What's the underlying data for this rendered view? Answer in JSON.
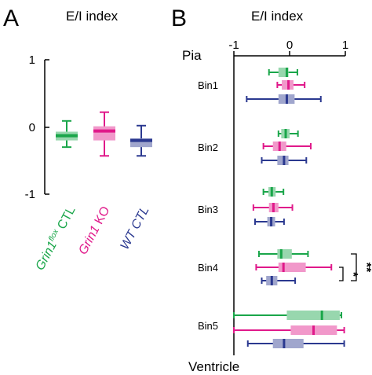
{
  "panel_a": {
    "letter": "A",
    "title": "E/I index",
    "y_tick_labels": [
      "1",
      "0",
      "-1"
    ],
    "category_labels": [
      {
        "main": "Grin1",
        "sup": "flox",
        "rest": " CTL"
      },
      {
        "main": "Grin1",
        "sup": "",
        "rest": " KO"
      },
      {
        "main": "WT CTL",
        "sup": "",
        "rest": ""
      }
    ]
  },
  "panel_b": {
    "letter": "B",
    "title": "E/I index",
    "top_label": "Pia",
    "bottom_label": "Ventricle",
    "x_tick_labels": [
      "-1",
      "0",
      "1"
    ],
    "bin_labels": [
      "Bin1",
      "Bin2",
      "Bin3",
      "Bin4",
      "Bin5"
    ],
    "significance": [
      "*",
      "**"
    ]
  },
  "colors": {
    "grin1flox_ctl": "#1aa64a",
    "grin1_ko": "#e0198a",
    "wt_ctl": "#2b3990"
  },
  "chart_data": [
    {
      "type": "box",
      "title": "E/I index",
      "ylim": [
        -1,
        1
      ],
      "y_ticks": [
        -1,
        0,
        1
      ],
      "grid": false,
      "series": [
        {
          "name": "Grin1flox CTL",
          "color_key": "grin1flox_ctl",
          "whisker_low": -0.3,
          "q1": -0.2,
          "median": -0.13,
          "q3": -0.07,
          "whisker_high": 0.09
        },
        {
          "name": "Grin1 KO",
          "color_key": "grin1_ko",
          "whisker_low": -0.43,
          "q1": -0.2,
          "median": -0.06,
          "q3": 0.01,
          "whisker_high": 0.22
        },
        {
          "name": "WT CTL",
          "color_key": "wt_ctl",
          "whisker_low": -0.43,
          "q1": -0.3,
          "median": -0.2,
          "q3": -0.17,
          "whisker_high": 0.02
        }
      ]
    },
    {
      "type": "box",
      "orientation": "horizontal",
      "title": "E/I index",
      "xlim": [
        -1,
        1
      ],
      "x_ticks": [
        -1,
        0,
        1
      ],
      "grid": false,
      "bins": [
        {
          "label": "Bin1",
          "boxes": [
            {
              "group": "Grin1flox CTL",
              "color_key": "grin1flox_ctl",
              "whisker_low": -0.37,
              "q1": -0.2,
              "median": -0.05,
              "q3": -0.02,
              "whisker_high": 0.14
            },
            {
              "group": "Grin1 KO",
              "color_key": "grin1_ko",
              "whisker_low": -0.22,
              "q1": -0.14,
              "median": -0.02,
              "q3": 0.07,
              "whisker_high": 0.27
            },
            {
              "group": "WT CTL",
              "color_key": "wt_ctl",
              "whisker_low": -0.77,
              "q1": -0.2,
              "median": -0.05,
              "q3": 0.09,
              "whisker_high": 0.56
            }
          ]
        },
        {
          "label": "Bin2",
          "boxes": [
            {
              "group": "Grin1flox CTL",
              "color_key": "grin1flox_ctl",
              "whisker_low": -0.2,
              "q1": -0.15,
              "median": -0.07,
              "q3": 0.0,
              "whisker_high": 0.15
            },
            {
              "group": "Grin1 KO",
              "color_key": "grin1_ko",
              "whisker_low": -0.47,
              "q1": -0.3,
              "median": -0.18,
              "q3": -0.06,
              "whisker_high": 0.38
            },
            {
              "group": "WT CTL",
              "color_key": "wt_ctl",
              "whisker_low": -0.5,
              "q1": -0.22,
              "median": -0.1,
              "q3": -0.02,
              "whisker_high": 0.3
            }
          ]
        },
        {
          "label": "Bin3",
          "boxes": [
            {
              "group": "Grin1flox CTL",
              "color_key": "grin1flox_ctl",
              "whisker_low": -0.47,
              "q1": -0.38,
              "median": -0.32,
              "q3": -0.25,
              "whisker_high": -0.11
            },
            {
              "group": "Grin1 KO",
              "color_key": "grin1_ko",
              "whisker_low": -0.65,
              "q1": -0.37,
              "median": -0.29,
              "q3": -0.2,
              "whisker_high": 0.05
            },
            {
              "group": "WT CTL",
              "color_key": "wt_ctl",
              "whisker_low": -0.62,
              "q1": -0.4,
              "median": -0.33,
              "q3": -0.26,
              "whisker_high": -0.1
            }
          ]
        },
        {
          "label": "Bin4",
          "boxes": [
            {
              "group": "Grin1flox CTL",
              "color_key": "grin1flox_ctl",
              "whisker_low": -0.55,
              "q1": -0.22,
              "median": -0.15,
              "q3": 0.04,
              "whisker_high": 0.33
            },
            {
              "group": "Grin1 KO",
              "color_key": "grin1_ko",
              "whisker_low": -0.6,
              "q1": -0.2,
              "median": -0.11,
              "q3": 0.29,
              "whisker_high": 0.75
            },
            {
              "group": "WT CTL",
              "color_key": "wt_ctl",
              "whisker_low": -0.5,
              "q1": -0.42,
              "median": -0.32,
              "q3": -0.22,
              "whisker_high": 0.1
            }
          ]
        },
        {
          "label": "Bin5",
          "boxes": [
            {
              "group": "Grin1flox CTL",
              "color_key": "grin1flox_ctl",
              "whisker_low": -1.0,
              "q1": -0.05,
              "median": 0.58,
              "q3": 0.9,
              "whisker_high": 0.93
            },
            {
              "group": "Grin1 KO",
              "color_key": "grin1_ko",
              "whisker_low": -1.0,
              "q1": 0.02,
              "median": 0.43,
              "q3": 0.85,
              "whisker_high": 0.98
            },
            {
              "group": "WT CTL",
              "color_key": "wt_ctl",
              "whisker_low": -0.75,
              "q1": -0.3,
              "median": -0.1,
              "q3": 0.25,
              "whisker_high": 0.98
            }
          ]
        }
      ],
      "annotations": [
        {
          "text": "*",
          "between": [
            "Grin1 KO",
            "WT CTL"
          ],
          "bin": "Bin4"
        },
        {
          "text": "**",
          "between": [
            "Grin1flox CTL",
            "WT CTL"
          ],
          "bin": "Bin4"
        }
      ]
    }
  ]
}
